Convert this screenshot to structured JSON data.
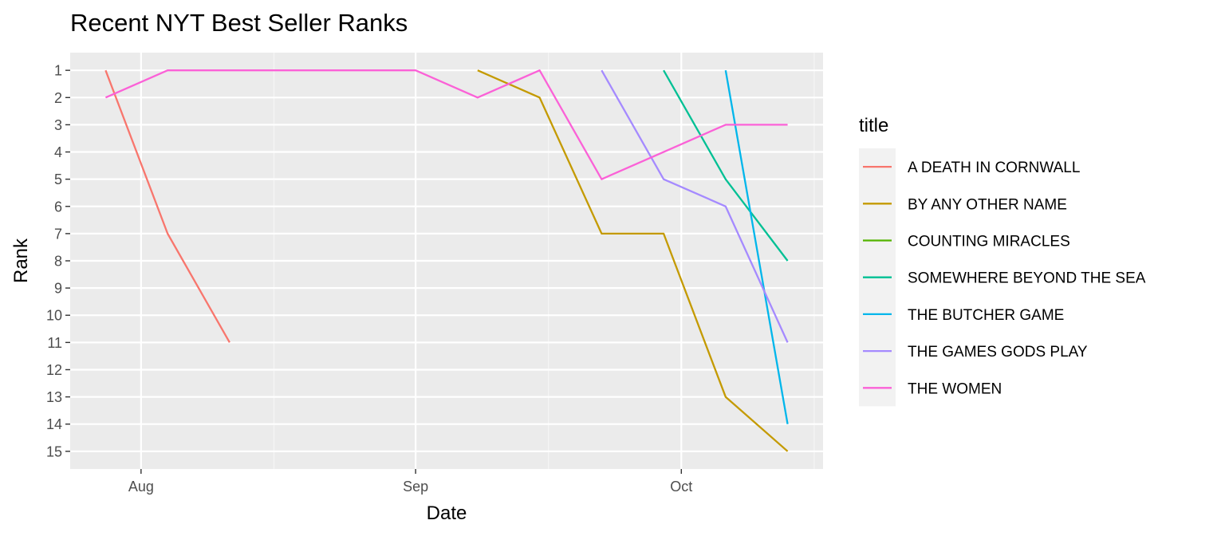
{
  "chart_data": {
    "type": "line",
    "title": "Recent NYT Best Seller Ranks",
    "xlabel": "Date",
    "ylabel": "Rank",
    "x_range": [
      "2024-07-24",
      "2024-10-17"
    ],
    "y_range": [
      0.35,
      15.65
    ],
    "y_reversed": true,
    "x_ticks": [
      {
        "date": "2024-08-01",
        "label": "Aug"
      },
      {
        "date": "2024-09-01",
        "label": "Sep"
      },
      {
        "date": "2024-10-01",
        "label": "Oct"
      }
    ],
    "x_minor_ticks": [
      "2024-08-16",
      "2024-09-16",
      "2024-10-16"
    ],
    "y_ticks": [
      1,
      2,
      3,
      4,
      5,
      6,
      7,
      8,
      9,
      10,
      11,
      12,
      13,
      14,
      15
    ],
    "grid": true,
    "legend": {
      "title": "title",
      "position": "right"
    },
    "series": [
      {
        "name": "A DEATH IN CORNWALL",
        "color": "#F8766D",
        "points": [
          [
            "2024-07-28",
            1
          ],
          [
            "2024-08-04",
            7
          ],
          [
            "2024-08-11",
            11
          ]
        ]
      },
      {
        "name": "BY ANY OTHER NAME",
        "color": "#C49A00",
        "points": [
          [
            "2024-09-08",
            1
          ],
          [
            "2024-09-15",
            2
          ],
          [
            "2024-09-22",
            7
          ],
          [
            "2024-09-29",
            7
          ],
          [
            "2024-10-06",
            13
          ],
          [
            "2024-10-13",
            15
          ]
        ]
      },
      {
        "name": "COUNTING MIRACLES",
        "color": "#53B400",
        "points": []
      },
      {
        "name": "SOMEWHERE BEYOND THE SEA",
        "color": "#00C094",
        "points": [
          [
            "2024-09-29",
            1
          ],
          [
            "2024-10-06",
            5
          ],
          [
            "2024-10-13",
            8
          ]
        ]
      },
      {
        "name": "THE BUTCHER GAME",
        "color": "#00B6EB",
        "points": [
          [
            "2024-10-06",
            1
          ],
          [
            "2024-10-13",
            14
          ]
        ]
      },
      {
        "name": "THE GAMES GODS PLAY",
        "color": "#A58AFF",
        "points": [
          [
            "2024-09-22",
            1
          ],
          [
            "2024-09-29",
            5
          ],
          [
            "2024-10-06",
            6
          ],
          [
            "2024-10-13",
            11
          ]
        ]
      },
      {
        "name": "THE WOMEN",
        "color": "#FB61D7",
        "points": [
          [
            "2024-07-28",
            2
          ],
          [
            "2024-08-04",
            1
          ],
          [
            "2024-08-11",
            1
          ],
          [
            "2024-08-18",
            1
          ],
          [
            "2024-08-25",
            1
          ],
          [
            "2024-09-01",
            1
          ],
          [
            "2024-09-08",
            2
          ],
          [
            "2024-09-15",
            1
          ],
          [
            "2024-09-22",
            5
          ],
          [
            "2024-09-29",
            4
          ],
          [
            "2024-10-06",
            3
          ],
          [
            "2024-10-13",
            3
          ]
        ]
      }
    ]
  }
}
